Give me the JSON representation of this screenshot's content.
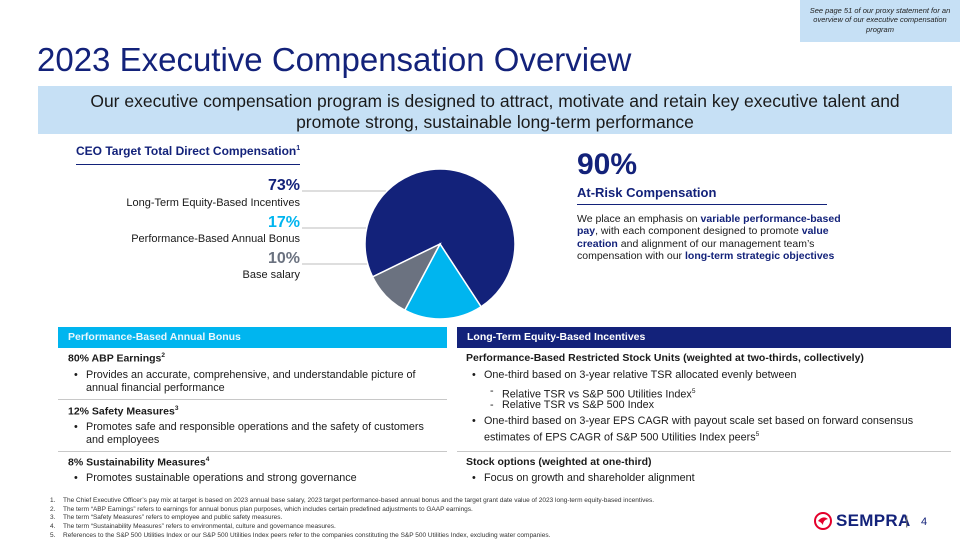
{
  "note": "See page 51 of our proxy statement for an overview of our executive compensation program",
  "title": "2023 Executive Compensation Overview",
  "banner": "Our executive compensation program is designed to attract, motivate and retain key executive talent and promote strong, sustainable long-term performance",
  "ceo": {
    "heading": "CEO Target Total Direct Compensation",
    "heading_sup": "1",
    "items": [
      {
        "pct": "73%",
        "label": "Long-Term Equity-Based Incentives",
        "value": 73,
        "color": "#13227a"
      },
      {
        "pct": "17%",
        "label": "Performance-Based Annual Bonus",
        "value": 17,
        "color": "#00b5ef"
      },
      {
        "pct": "10%",
        "label": "Base salary",
        "value": 10,
        "color": "#6b7280"
      }
    ]
  },
  "chart_data": {
    "type": "pie",
    "labels": [
      "Long-Term Equity-Based Incentives",
      "Performance-Based Annual Bonus",
      "Base salary"
    ],
    "values": [
      73,
      17,
      10
    ],
    "colors": [
      "#13227a",
      "#00b5ef",
      "#6b7280"
    ]
  },
  "at_risk": {
    "value": "90%",
    "label": "At-Risk Compensation",
    "body_parts": [
      {
        "t": "We place an emphasis on ",
        "b": false
      },
      {
        "t": "variable performance-based pay",
        "b": true
      },
      {
        "t": ", with each component designed to promote ",
        "b": false
      },
      {
        "t": "value creation",
        "b": true
      },
      {
        "t": " and alignment of our management team’s compensation with our ",
        "b": false
      },
      {
        "t": "long-term strategic objectives",
        "b": true
      }
    ]
  },
  "bonus": {
    "header": "Performance-Based Annual Bonus",
    "sections": [
      {
        "title": "80% ABP Earnings",
        "sup": "2",
        "bullet": "Provides an accurate, comprehensive, and understandable picture of annual financial performance"
      },
      {
        "title": "12% Safety Measures",
        "sup": "3",
        "bullet": "Promotes safe and responsible operations and the safety of customers and employees"
      },
      {
        "title": "8% Sustainability Measures",
        "sup": "4",
        "bullet": "Promotes sustainable operations and strong governance"
      }
    ]
  },
  "equity": {
    "header": "Long-Term Equity-Based Incentives",
    "rsu_title": "Performance-Based Restricted Stock Units (weighted at two-thirds, collectively)",
    "rsu_bullet1": "One-third based on 3-year relative TSR allocated evenly between",
    "rsu_sub1": "Relative TSR vs S&P 500 Utilities Index",
    "rsu_sub1_sup": "5",
    "rsu_sub2": "Relative TSR vs S&P 500 Index",
    "rsu_bullet2": "One-third based on 3-year EPS CAGR with payout scale set based on forward consensus estimates of EPS CAGR of S&P 500 Utilities Index peers",
    "rsu_bullet2_sup": "5",
    "options_title": "Stock options (weighted at one-third)",
    "options_bullet": "Focus on growth and shareholder alignment"
  },
  "footnotes": [
    "The Chief Executive Officer’s pay mix at target is based on 2023 annual base salary, 2023 target performance-based annual bonus and the target grant date value of 2023 long-term equity-based incentives.",
    "The term “ABP Earnings” refers to earnings for annual bonus plan purposes, which includes certain predefined adjustments to GAAP earnings.",
    "The term “Safety Measures” refers to employee and public safety measures.",
    "The term “Sustainability Measures” refers to environmental, culture and governance measures.",
    "References to the S&P 500 Utilities Index or our S&P 500 Utilities Index peers refer to the companies constituting the S&P 500 Utilities Index, excluding water companies."
  ],
  "footnote_numbers": [
    "1.",
    "2.",
    "3.",
    "4.",
    "5."
  ],
  "logo_text": "SEMPRA",
  "page_number": "4"
}
